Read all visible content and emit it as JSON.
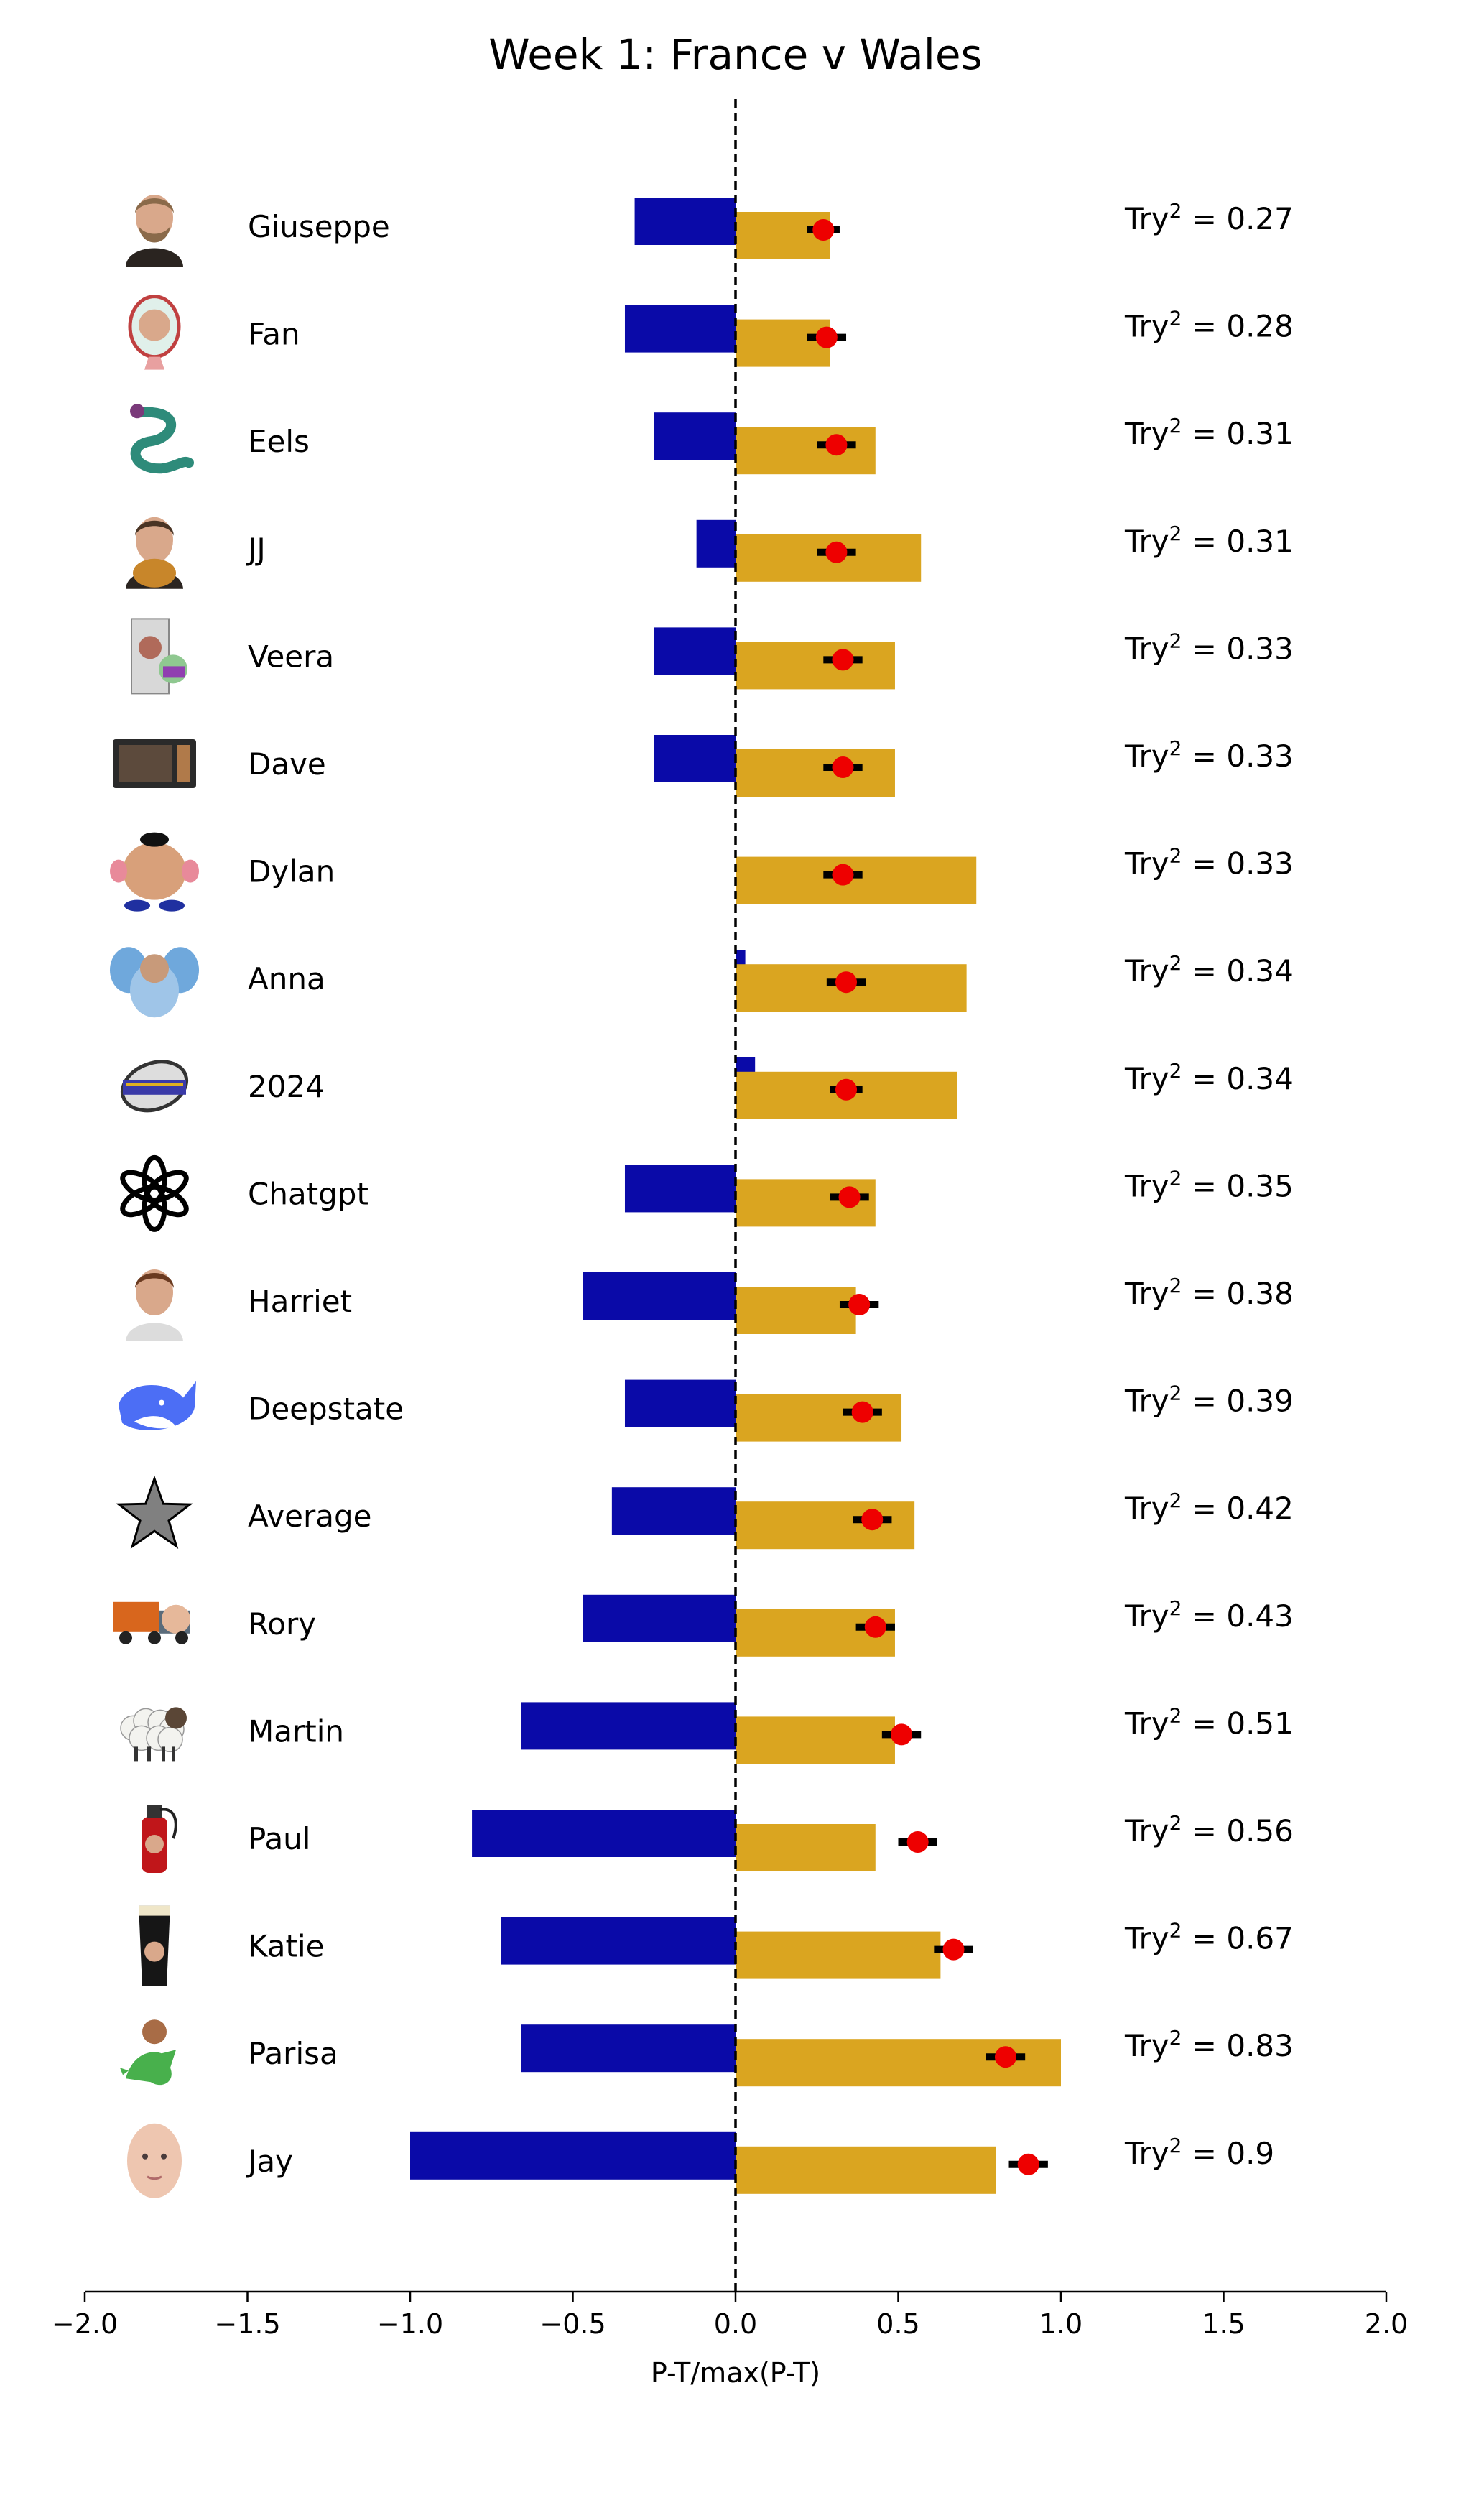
{
  "chart_data": {
    "type": "bar",
    "title": "Week 1: France v Wales",
    "xlabel": "P-T/max(P-T)",
    "ylabel": "",
    "xlim": [
      -2.0,
      2.0
    ],
    "xticks": [
      "−2.0",
      "−1.5",
      "−1.0",
      "−0.5",
      "0.0",
      "0.5",
      "1.0",
      "1.5",
      "2.0"
    ],
    "metric_prefix": "Try",
    "metric_superscript": "2",
    "metric_separator": " = ",
    "rows": [
      {
        "name": "Giuseppe",
        "icon": "bearded-man-portrait",
        "negative": -0.31,
        "positive": 0.29,
        "point": 0.27,
        "err": 0.05,
        "metric": "0.27"
      },
      {
        "name": "Fan",
        "icon": "face-in-mirror",
        "negative": -0.34,
        "positive": 0.29,
        "point": 0.28,
        "err": 0.06,
        "metric": "0.28"
      },
      {
        "name": "Eels",
        "icon": "eel",
        "negative": -0.25,
        "positive": 0.43,
        "point": 0.31,
        "err": 0.06,
        "metric": "0.31"
      },
      {
        "name": "JJ",
        "icon": "man-with-dog",
        "negative": -0.12,
        "positive": 0.57,
        "point": 0.31,
        "err": 0.06,
        "metric": "0.31"
      },
      {
        "name": "Veera",
        "icon": "computer-tower",
        "negative": -0.25,
        "positive": 0.49,
        "point": 0.33,
        "err": 0.06,
        "metric": "0.33"
      },
      {
        "name": "Dave",
        "icon": "microwave",
        "negative": -0.25,
        "positive": 0.49,
        "point": 0.33,
        "err": 0.06,
        "metric": "0.33"
      },
      {
        "name": "Dylan",
        "icon": "potato-head",
        "negative": 0.0,
        "positive": 0.74,
        "point": 0.33,
        "err": 0.06,
        "metric": "0.33"
      },
      {
        "name": "Anna",
        "icon": "elephant",
        "negative": 0.03,
        "positive": 0.71,
        "point": 0.34,
        "err": 0.06,
        "metric": "0.34"
      },
      {
        "name": "2024",
        "icon": "rugby-ball-2024",
        "negative": 0.06,
        "positive": 0.68,
        "point": 0.34,
        "err": 0.05,
        "metric": "0.34"
      },
      {
        "name": "Chatgpt",
        "icon": "openai-logo",
        "negative": -0.34,
        "positive": 0.43,
        "point": 0.35,
        "err": 0.06,
        "metric": "0.35"
      },
      {
        "name": "Harriet",
        "icon": "woman-portrait",
        "negative": -0.47,
        "positive": 0.37,
        "point": 0.38,
        "err": 0.06,
        "metric": "0.38"
      },
      {
        "name": "Deepstate",
        "icon": "whale-logo",
        "negative": -0.34,
        "positive": 0.51,
        "point": 0.39,
        "err": 0.06,
        "metric": "0.39"
      },
      {
        "name": "Average",
        "icon": "star",
        "negative": -0.38,
        "positive": 0.55,
        "point": 0.42,
        "err": 0.06,
        "metric": "0.42"
      },
      {
        "name": "Rory",
        "icon": "truck",
        "negative": -0.47,
        "positive": 0.49,
        "point": 0.43,
        "err": 0.06,
        "metric": "0.43"
      },
      {
        "name": "Martin",
        "icon": "sheep",
        "negative": -0.66,
        "positive": 0.49,
        "point": 0.51,
        "err": 0.06,
        "metric": "0.51"
      },
      {
        "name": "Paul",
        "icon": "fire-extinguisher",
        "negative": -0.81,
        "positive": 0.43,
        "point": 0.56,
        "err": 0.06,
        "metric": "0.56"
      },
      {
        "name": "Katie",
        "icon": "pint-glass",
        "negative": -0.72,
        "positive": 0.63,
        "point": 0.67,
        "err": 0.06,
        "metric": "0.67"
      },
      {
        "name": "Parisa",
        "icon": "dinosaur",
        "negative": -0.66,
        "positive": 1.0,
        "point": 0.83,
        "err": 0.06,
        "metric": "0.83"
      },
      {
        "name": "Jay",
        "icon": "baby-face",
        "negative": -1.0,
        "positive": 0.8,
        "point": 0.9,
        "err": 0.06,
        "metric": "0.9"
      }
    ],
    "colors": {
      "negative_bar": "#0a0aa8",
      "positive_bar": "#daa520",
      "point": "#ee0000",
      "errorbar": "#000000",
      "zero_line": "#000000"
    },
    "zero_line_style": "dashed",
    "grid": false,
    "legend": "none"
  }
}
